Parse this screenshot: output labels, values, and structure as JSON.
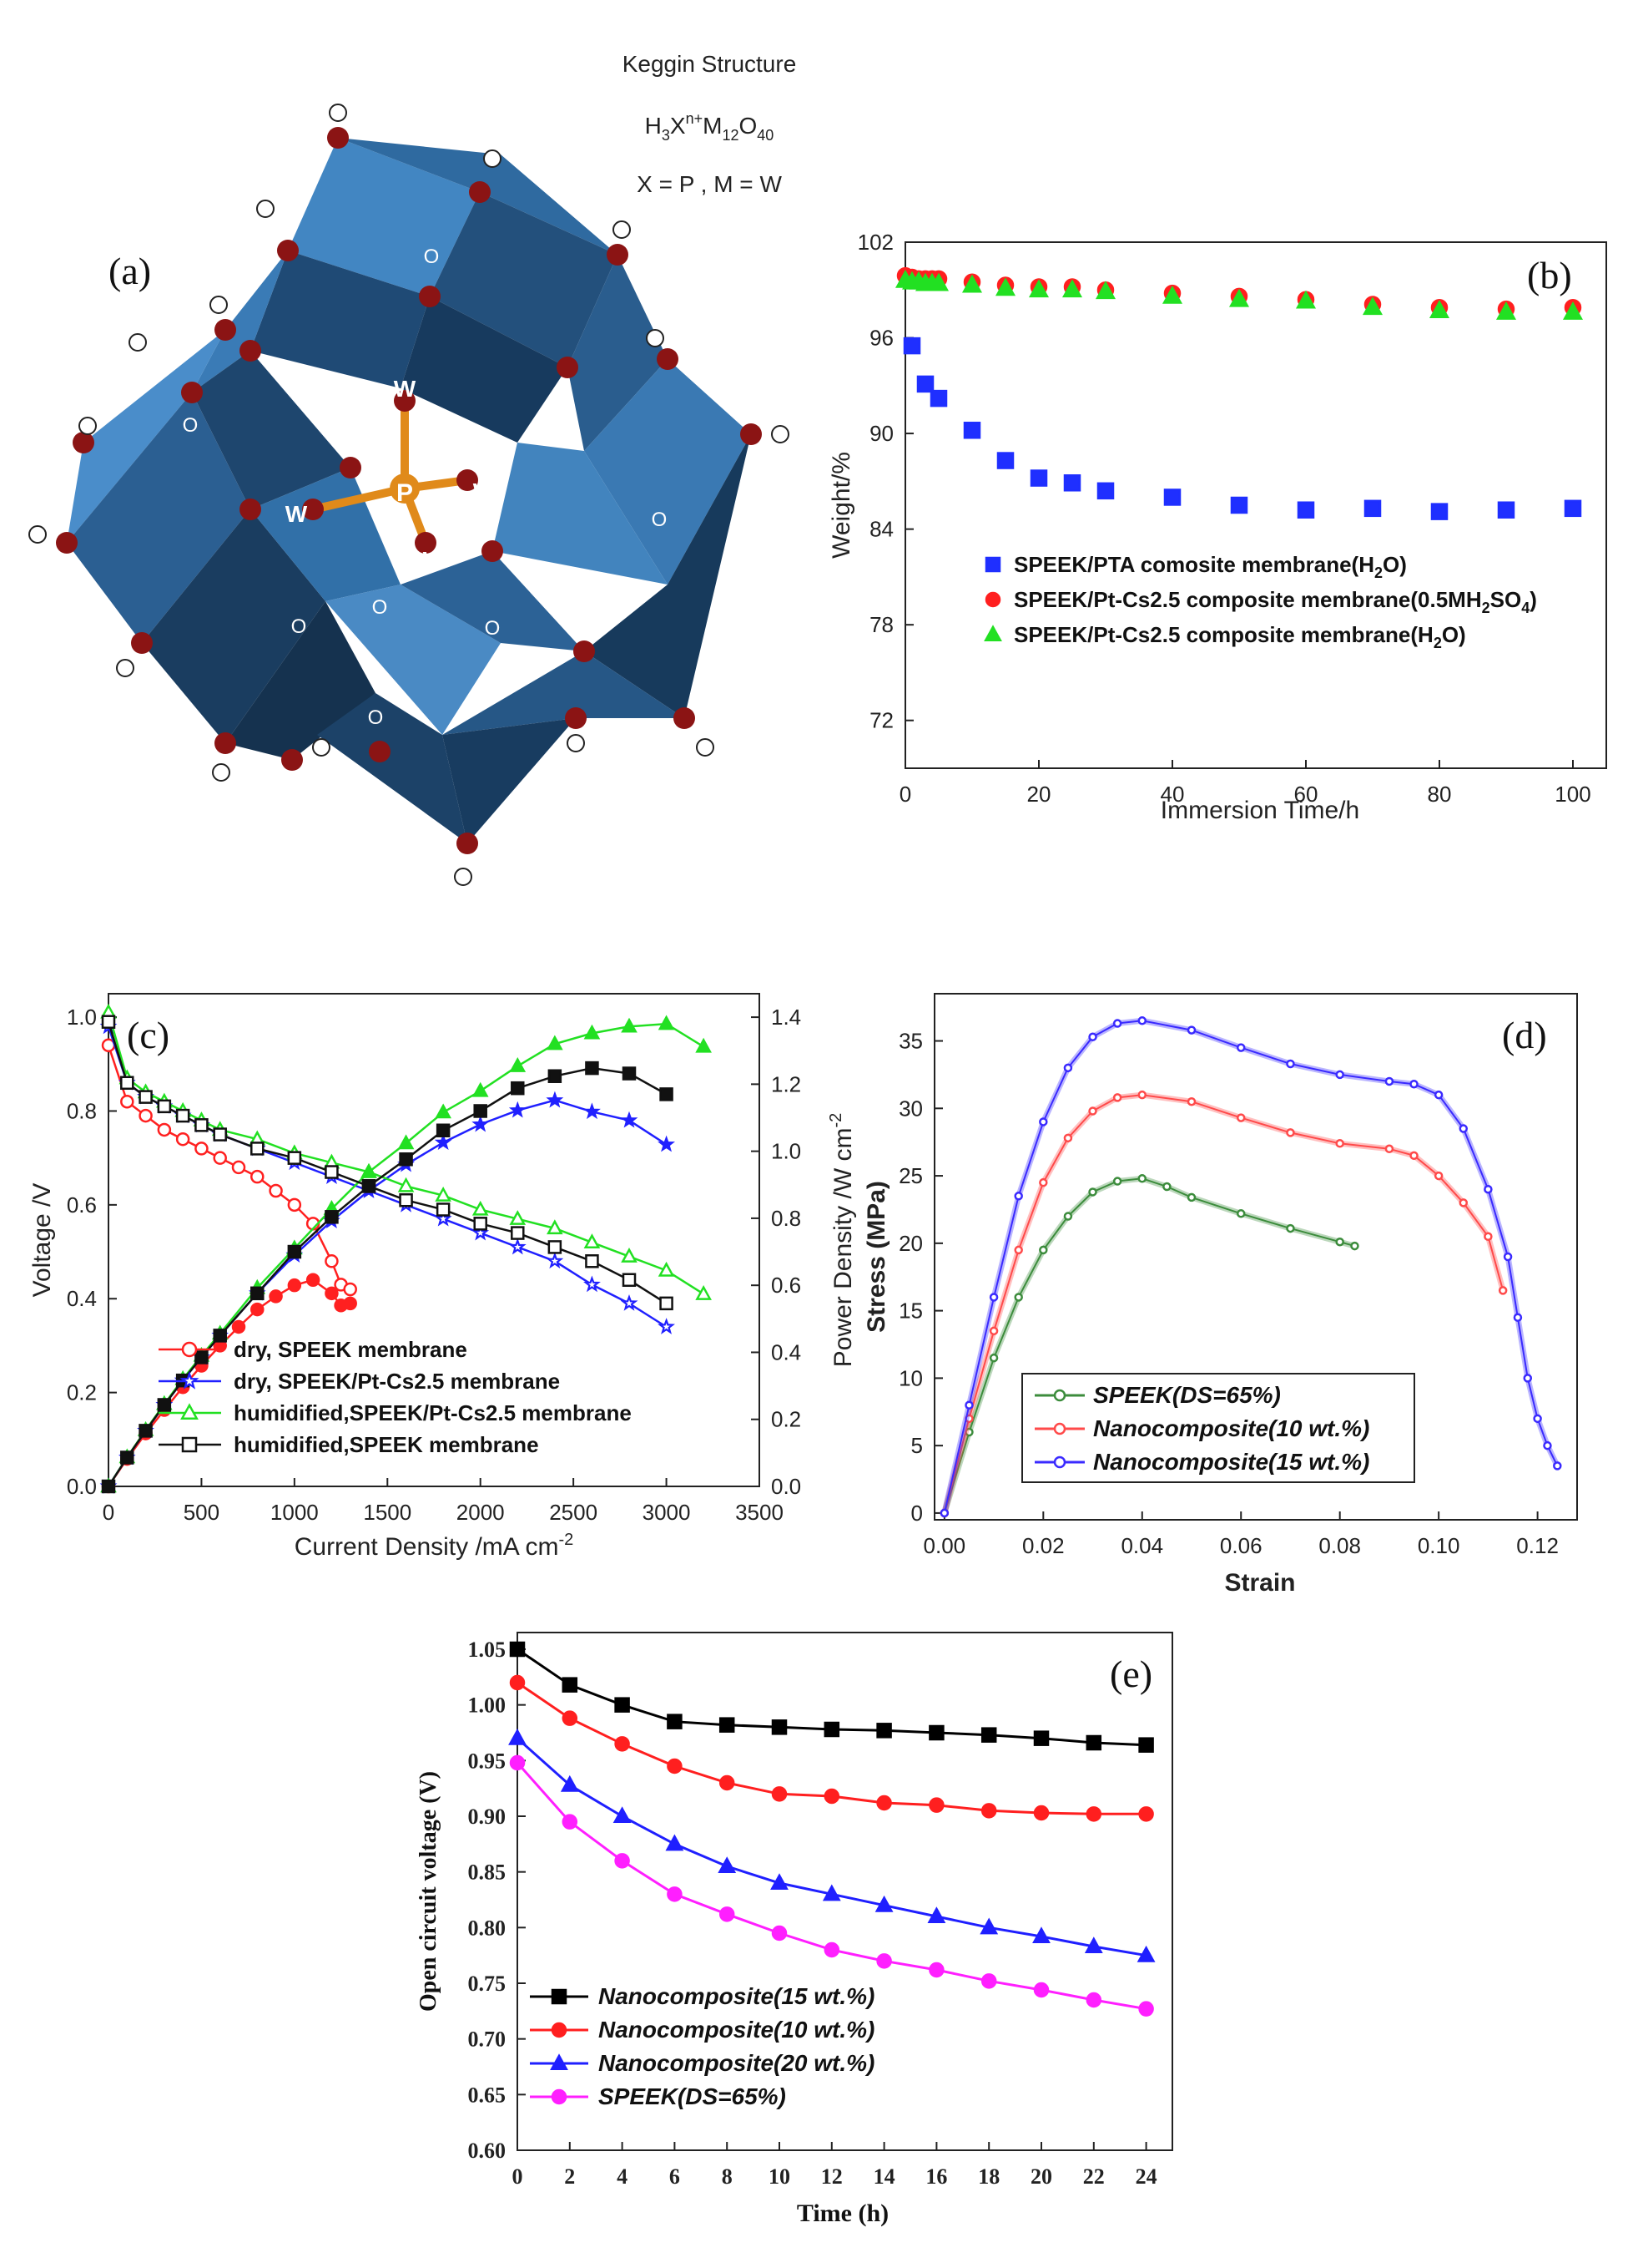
{
  "panel_a": {
    "label": "(a)",
    "title": "Keggin Structure",
    "formula_parts": {
      "h": "H",
      "h_sub": "3",
      "x": "X",
      "x_sup": "n+",
      "m": "M",
      "m_sub": "12",
      "o": "O",
      "o_sub": "40"
    },
    "assignment": "X = P ,  M = W",
    "atom_labels": {
      "o": "O",
      "w": "W",
      "p": "P"
    },
    "colors": {
      "face_light": "#3f7fb8",
      "face_mid": "#2d5f8f",
      "face_dark": "#1d3a58",
      "oxygen": "#8b1414",
      "phosphorus": "#e08a1a"
    }
  },
  "chart_data": [
    {
      "id": "b",
      "type": "scatter",
      "label": "(b)",
      "xlabel": "Immersion Time/h",
      "ylabel": "Weight/%",
      "xlim": [
        0,
        105
      ],
      "ylim": [
        69,
        102
      ],
      "xticks": [
        0,
        20,
        40,
        60,
        80,
        100
      ],
      "yticks": [
        72,
        78,
        84,
        90,
        96,
        102
      ],
      "legend_position": "center-left",
      "series": [
        {
          "name": "SPEEK/PTA comosite membrane(H",
          "sub": "2",
          "suffix": "O)",
          "marker": "square",
          "color": "#1f2fff",
          "x": [
            1,
            3,
            5,
            10,
            15,
            20,
            25,
            30,
            40,
            50,
            60,
            70,
            80,
            90,
            100
          ],
          "y": [
            95.5,
            93.1,
            92.2,
            90.2,
            88.3,
            87.2,
            86.9,
            86.4,
            86.0,
            85.5,
            85.2,
            85.3,
            85.1,
            85.2,
            85.3
          ]
        },
        {
          "name": "SPEEK/Pt-Cs2.5 composite membrane(0.5MH",
          "sub": "2",
          "suffix": "SO",
          "sub2": "4",
          "suffix2": ")",
          "marker": "circle",
          "color": "#ff1f1f",
          "x": [
            0,
            1,
            2,
            3,
            4,
            5,
            10,
            15,
            20,
            25,
            30,
            40,
            50,
            60,
            70,
            80,
            90,
            100
          ],
          "y": [
            99.9,
            99.8,
            99.7,
            99.7,
            99.7,
            99.7,
            99.5,
            99.3,
            99.2,
            99.2,
            99.0,
            98.8,
            98.6,
            98.4,
            98.1,
            97.9,
            97.8,
            97.9
          ]
        },
        {
          "name": "SPEEK/Pt-Cs2.5 composite membrane(H",
          "sub": "2",
          "suffix": "O)",
          "marker": "triangle",
          "color": "#22e022",
          "x": [
            0,
            1,
            2,
            3,
            4,
            5,
            10,
            15,
            20,
            25,
            30,
            40,
            50,
            60,
            70,
            80,
            90,
            100
          ],
          "y": [
            99.6,
            99.5,
            99.5,
            99.4,
            99.4,
            99.4,
            99.3,
            99.1,
            99.0,
            99.0,
            98.9,
            98.6,
            98.4,
            98.3,
            97.9,
            97.7,
            97.6,
            97.6
          ]
        }
      ]
    },
    {
      "id": "c",
      "type": "line",
      "label": "(c)",
      "xlabel": "Current Density /mA cm",
      "xlabel_sup": "-2",
      "ylabel": "Voltage /V",
      "y2label": "Power Density /W cm",
      "y2label_sup": "-2",
      "xlim": [
        0,
        3500
      ],
      "ylim": [
        0,
        1.05
      ],
      "y2lim": [
        0,
        1.47
      ],
      "xticks": [
        0,
        500,
        1000,
        1500,
        2000,
        2500,
        3000,
        3500
      ],
      "yticks": [
        0.0,
        0.2,
        0.4,
        0.6,
        0.8,
        1.0
      ],
      "ytick_labels": [
        "0.0",
        "0.2",
        "0.4",
        "0.6",
        "0.8",
        "1.0"
      ],
      "y2ticks": [
        0.0,
        0.2,
        0.4,
        0.6,
        0.8,
        1.0,
        1.2,
        1.4
      ],
      "y2tick_labels": [
        "0.0",
        "0.2",
        "0.4",
        "0.6",
        "0.8",
        "1.0",
        "1.2",
        "1.4"
      ],
      "legend_position": "bottom-left",
      "series": [
        {
          "name": "dry, SPEEK membrane",
          "color": "#ff2020",
          "marker": "circle",
          "x": [
            0,
            100,
            200,
            300,
            400,
            500,
            600,
            700,
            800,
            900,
            1000,
            1100,
            1200,
            1250,
            1300
          ],
          "voltage": [
            0.94,
            0.82,
            0.79,
            0.76,
            0.74,
            0.72,
            0.7,
            0.68,
            0.66,
            0.63,
            0.6,
            0.56,
            0.48,
            0.43,
            0.42
          ],
          "power": [
            0.0,
            0.082,
            0.158,
            0.228,
            0.296,
            0.36,
            0.42,
            0.476,
            0.528,
            0.567,
            0.6,
            0.616,
            0.576,
            0.54,
            0.546
          ]
        },
        {
          "name": "dry, SPEEK/Pt-Cs2.5 membrane",
          "color": "#2020ff",
          "marker": "star",
          "x": [
            0,
            100,
            200,
            300,
            400,
            500,
            600,
            800,
            1000,
            1200,
            1400,
            1600,
            1800,
            2000,
            2200,
            2400,
            2600,
            2800,
            3000
          ],
          "voltage": [
            0.98,
            0.86,
            0.83,
            0.81,
            0.79,
            0.77,
            0.75,
            0.72,
            0.69,
            0.66,
            0.63,
            0.6,
            0.57,
            0.54,
            0.51,
            0.48,
            0.43,
            0.39,
            0.34
          ],
          "power": [
            0.0,
            0.086,
            0.166,
            0.243,
            0.316,
            0.385,
            0.45,
            0.576,
            0.69,
            0.792,
            0.882,
            0.96,
            1.026,
            1.08,
            1.122,
            1.152,
            1.118,
            1.092,
            1.02
          ]
        },
        {
          "name": "humidified,SPEEK/Pt-Cs2.5 membrane",
          "color": "#22e022",
          "marker": "triangle",
          "x": [
            0,
            100,
            200,
            300,
            400,
            500,
            600,
            800,
            1000,
            1200,
            1400,
            1600,
            1800,
            2000,
            2200,
            2400,
            2600,
            2800,
            3000,
            3200
          ],
          "voltage": [
            1.01,
            0.87,
            0.84,
            0.82,
            0.8,
            0.78,
            0.76,
            0.74,
            0.71,
            0.69,
            0.67,
            0.64,
            0.62,
            0.59,
            0.57,
            0.55,
            0.52,
            0.49,
            0.46,
            0.41
          ],
          "power": [
            0.0,
            0.087,
            0.168,
            0.246,
            0.32,
            0.39,
            0.456,
            0.592,
            0.71,
            0.828,
            0.938,
            1.024,
            1.116,
            1.18,
            1.254,
            1.32,
            1.352,
            1.372,
            1.38,
            1.312
          ]
        },
        {
          "name": "humidified,SPEEK membrane",
          "color": "#111111",
          "marker": "square",
          "x": [
            0,
            100,
            200,
            300,
            400,
            500,
            600,
            800,
            1000,
            1200,
            1400,
            1600,
            1800,
            2000,
            2200,
            2400,
            2600,
            2800,
            3000
          ],
          "voltage": [
            0.99,
            0.86,
            0.83,
            0.81,
            0.79,
            0.77,
            0.75,
            0.72,
            0.7,
            0.67,
            0.64,
            0.61,
            0.59,
            0.56,
            0.54,
            0.51,
            0.48,
            0.44,
            0.39
          ],
          "power": [
            0.0,
            0.086,
            0.166,
            0.243,
            0.316,
            0.385,
            0.45,
            0.576,
            0.7,
            0.804,
            0.896,
            0.976,
            1.062,
            1.12,
            1.188,
            1.224,
            1.248,
            1.232,
            1.17
          ]
        }
      ]
    },
    {
      "id": "d",
      "type": "line",
      "label": "(d)",
      "xlabel": "Strain",
      "ylabel": "Stress (MPa)",
      "xlim": [
        -0.002,
        0.128
      ],
      "ylim": [
        -0.5,
        38.5
      ],
      "xticks": [
        0.0,
        0.02,
        0.04,
        0.06,
        0.08,
        0.1,
        0.12
      ],
      "xtick_labels": [
        "0.00",
        "0.02",
        "0.04",
        "0.06",
        "0.08",
        "0.10",
        "0.12"
      ],
      "yticks": [
        0,
        5,
        10,
        15,
        20,
        25,
        30,
        35
      ],
      "legend_position": "bottom-center",
      "series": [
        {
          "name": "SPEEK(DS=65%)",
          "color": "#3c8c3c",
          "x": [
            0.0,
            0.005,
            0.01,
            0.015,
            0.02,
            0.025,
            0.03,
            0.035,
            0.04,
            0.045,
            0.05,
            0.06,
            0.07,
            0.08,
            0.083
          ],
          "y": [
            0.0,
            6.0,
            11.5,
            16.0,
            19.5,
            22.0,
            23.8,
            24.6,
            24.8,
            24.2,
            23.4,
            22.2,
            21.1,
            20.1,
            19.8
          ]
        },
        {
          "name": "Nanocomposite(10 wt.%)",
          "color": "#ff4a4a",
          "x": [
            0.0,
            0.005,
            0.01,
            0.015,
            0.02,
            0.025,
            0.03,
            0.035,
            0.04,
            0.05,
            0.06,
            0.07,
            0.08,
            0.09,
            0.095,
            0.1,
            0.105,
            0.11,
            0.113
          ],
          "y": [
            0.0,
            7.0,
            13.5,
            19.5,
            24.5,
            27.8,
            29.8,
            30.8,
            31.0,
            30.5,
            29.3,
            28.2,
            27.4,
            27.0,
            26.5,
            25.0,
            23.0,
            20.5,
            16.5
          ]
        },
        {
          "name": "Nanocomposite(15 wt.%)",
          "color": "#3a2aff",
          "x": [
            0.0,
            0.005,
            0.01,
            0.015,
            0.02,
            0.025,
            0.03,
            0.035,
            0.04,
            0.05,
            0.06,
            0.07,
            0.08,
            0.09,
            0.095,
            0.1,
            0.105,
            0.11,
            0.114,
            0.116,
            0.118,
            0.12,
            0.122,
            0.124
          ],
          "y": [
            0.0,
            8.0,
            16.0,
            23.5,
            29.0,
            33.0,
            35.3,
            36.3,
            36.5,
            35.8,
            34.5,
            33.3,
            32.5,
            32.0,
            31.8,
            31.0,
            28.5,
            24.0,
            19.0,
            14.5,
            10.0,
            7.0,
            5.0,
            3.5
          ]
        }
      ]
    },
    {
      "id": "e",
      "type": "line",
      "label": "(e)",
      "xlabel": "Time (h)",
      "ylabel": "Open circuit voltage (V)",
      "xlim": [
        0,
        25
      ],
      "ylim": [
        0.6,
        1.065
      ],
      "xticks": [
        0,
        2,
        4,
        6,
        8,
        10,
        12,
        14,
        16,
        18,
        20,
        22,
        24
      ],
      "yticks": [
        0.6,
        0.65,
        0.7,
        0.75,
        0.8,
        0.85,
        0.9,
        0.95,
        1.0,
        1.05
      ],
      "ytick_labels": [
        "0.60",
        "0.65",
        "0.70",
        "0.75",
        "0.80",
        "0.85",
        "0.90",
        "0.95",
        "1.00",
        "1.05"
      ],
      "legend_position": "bottom-left",
      "x": [
        0,
        2,
        4,
        6,
        8,
        10,
        12,
        14,
        16,
        18,
        20,
        22,
        24
      ],
      "series": [
        {
          "name": "Nanocomposite(15 wt.%)",
          "color": "#000000",
          "marker": "square",
          "values": [
            1.05,
            1.018,
            1.0,
            0.985,
            0.982,
            0.98,
            0.978,
            0.977,
            0.975,
            0.973,
            0.97,
            0.966,
            0.964
          ]
        },
        {
          "name": "Nanocomposite(10 wt.%)",
          "color": "#ff1f1f",
          "marker": "circle",
          "values": [
            1.02,
            0.988,
            0.965,
            0.945,
            0.93,
            0.92,
            0.918,
            0.912,
            0.91,
            0.905,
            0.903,
            0.902,
            0.902
          ]
        },
        {
          "name": "Nanocomposite(20 wt.%)",
          "color": "#1f1fff",
          "marker": "triangle",
          "values": [
            0.97,
            0.928,
            0.9,
            0.875,
            0.855,
            0.84,
            0.83,
            0.82,
            0.81,
            0.8,
            0.792,
            0.783,
            0.775
          ]
        },
        {
          "name": "SPEEK(DS=65%)",
          "color": "#ff1fff",
          "marker": "circle",
          "values": [
            0.948,
            0.895,
            0.86,
            0.83,
            0.812,
            0.795,
            0.78,
            0.77,
            0.762,
            0.752,
            0.744,
            0.735,
            0.727
          ]
        }
      ]
    }
  ]
}
